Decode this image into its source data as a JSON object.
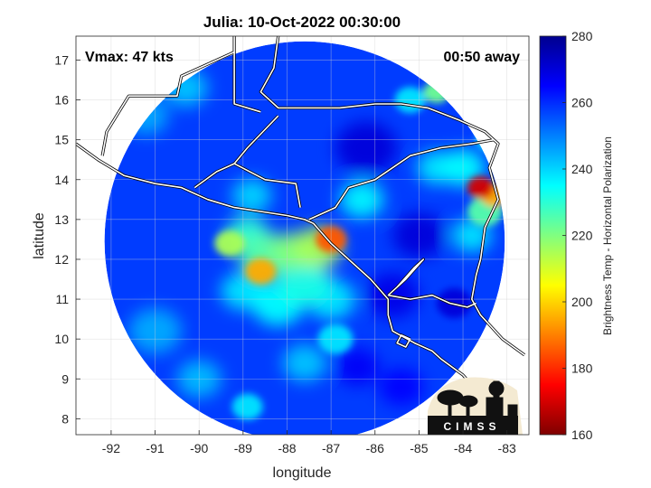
{
  "chart_data": {
    "type": "heatmap",
    "title": "Julia: 10-Oct-2022 00:30:00",
    "xlabel": "longitude",
    "ylabel": "latitude",
    "xlim": [
      -92.8,
      -82.5
    ],
    "ylim": [
      7.6,
      17.6
    ],
    "x_ticks": [
      -92,
      -91,
      -90,
      -89,
      -88,
      -87,
      -86,
      -85,
      -84,
      -83
    ],
    "y_ticks": [
      8,
      9,
      10,
      11,
      12,
      13,
      14,
      15,
      16,
      17
    ],
    "grid": true,
    "annotations": {
      "vmax": "Vmax: 47 kts",
      "away": "00:50 away"
    },
    "colorbar": {
      "label": "Brightness Temp - Horizontal Polarization",
      "min": 160,
      "max": 280,
      "ticks": [
        160,
        180,
        200,
        220,
        240,
        260,
        280
      ],
      "colors": [
        "#7f0000",
        "#ff0000",
        "#ff8000",
        "#ffff00",
        "#80ff80",
        "#00ffff",
        "#0080ff",
        "#0000ff",
        "#00008f"
      ]
    },
    "swath": {
      "center_lon": -87.6,
      "center_lat": 12.45,
      "radius_deg": 4.55,
      "background_value": 258
    },
    "features": [
      {
        "lon": -87.0,
        "lat": 12.5,
        "value": 185,
        "size": 0.35
      },
      {
        "lon": -87.3,
        "lat": 12.3,
        "value": 215,
        "size": 0.55
      },
      {
        "lon": -87.9,
        "lat": 12.2,
        "value": 220,
        "size": 0.5
      },
      {
        "lon": -88.6,
        "lat": 11.7,
        "value": 195,
        "size": 0.35
      },
      {
        "lon": -88.5,
        "lat": 12.1,
        "value": 225,
        "size": 0.6
      },
      {
        "lon": -89.3,
        "lat": 12.4,
        "value": 215,
        "size": 0.35
      },
      {
        "lon": -88.9,
        "lat": 12.6,
        "value": 230,
        "size": 0.5
      },
      {
        "lon": -87.6,
        "lat": 11.4,
        "value": 232,
        "size": 0.6
      },
      {
        "lon": -88.2,
        "lat": 10.9,
        "value": 235,
        "size": 0.6
      },
      {
        "lon": -87.0,
        "lat": 11.0,
        "value": 238,
        "size": 0.55
      },
      {
        "lon": -89.0,
        "lat": 11.2,
        "value": 238,
        "size": 0.5
      },
      {
        "lon": -83.6,
        "lat": 13.8,
        "value": 170,
        "size": 0.3
      },
      {
        "lon": -83.3,
        "lat": 13.6,
        "value": 195,
        "size": 0.3
      },
      {
        "lon": -83.5,
        "lat": 13.2,
        "value": 225,
        "size": 0.4
      },
      {
        "lon": -84.0,
        "lat": 14.3,
        "value": 235,
        "size": 0.5
      },
      {
        "lon": -84.6,
        "lat": 14.3,
        "value": 238,
        "size": 0.45
      },
      {
        "lon": -83.8,
        "lat": 12.6,
        "value": 238,
        "size": 0.45
      },
      {
        "lon": -84.6,
        "lat": 16.2,
        "value": 222,
        "size": 0.3
      },
      {
        "lon": -85.2,
        "lat": 16.0,
        "value": 238,
        "size": 0.35
      },
      {
        "lon": -83.4,
        "lat": 15.0,
        "value": 236,
        "size": 0.3
      },
      {
        "lon": -86.3,
        "lat": 13.5,
        "value": 236,
        "size": 0.5
      },
      {
        "lon": -90.3,
        "lat": 16.3,
        "value": 242,
        "size": 0.5
      },
      {
        "lon": -91.2,
        "lat": 15.6,
        "value": 245,
        "size": 0.5
      },
      {
        "lon": -88.8,
        "lat": 13.6,
        "value": 240,
        "size": 0.45
      },
      {
        "lon": -91.0,
        "lat": 10.2,
        "value": 245,
        "size": 0.6
      },
      {
        "lon": -90.0,
        "lat": 9.0,
        "value": 243,
        "size": 0.5
      },
      {
        "lon": -88.9,
        "lat": 8.3,
        "value": 238,
        "size": 0.35
      },
      {
        "lon": -86.9,
        "lat": 10.0,
        "value": 238,
        "size": 0.4
      },
      {
        "lon": -87.6,
        "lat": 9.4,
        "value": 242,
        "size": 0.5
      },
      {
        "lon": -85.6,
        "lat": 11.1,
        "value": 268,
        "size": 0.6
      },
      {
        "lon": -85.0,
        "lat": 12.6,
        "value": 270,
        "size": 0.6
      },
      {
        "lon": -86.2,
        "lat": 14.8,
        "value": 270,
        "size": 0.7
      },
      {
        "lon": -84.2,
        "lat": 10.9,
        "value": 270,
        "size": 0.4
      },
      {
        "lon": -86.4,
        "lat": 9.3,
        "value": 266,
        "size": 0.5
      },
      {
        "lon": -85.4,
        "lat": 8.8,
        "value": 265,
        "size": 0.5
      }
    ],
    "coastlines": [
      [
        [
          -92.8,
          14.9
        ],
        [
          -92.3,
          14.5
        ],
        [
          -91.7,
          14.1
        ],
        [
          -91.0,
          13.9
        ],
        [
          -90.4,
          13.8
        ],
        [
          -89.8,
          13.5
        ],
        [
          -89.2,
          13.3
        ],
        [
          -88.6,
          13.2
        ],
        [
          -88.0,
          13.1
        ],
        [
          -87.6,
          13.0
        ],
        [
          -87.4,
          12.9
        ],
        [
          -87.0,
          12.4
        ],
        [
          -86.6,
          12.0
        ],
        [
          -86.1,
          11.5
        ],
        [
          -85.7,
          11.0
        ],
        [
          -85.7,
          10.6
        ],
        [
          -85.6,
          10.2
        ],
        [
          -85.1,
          9.9
        ],
        [
          -84.7,
          9.7
        ],
        [
          -84.5,
          9.5
        ],
        [
          -84.0,
          9.1
        ],
        [
          -83.6,
          8.6
        ],
        [
          -83.3,
          8.3
        ],
        [
          -82.9,
          8.1
        ]
      ],
      [
        [
          -88.2,
          17.6
        ],
        [
          -88.3,
          16.8
        ],
        [
          -88.6,
          16.2
        ],
        [
          -88.2,
          15.8
        ],
        [
          -87.6,
          15.8
        ],
        [
          -86.8,
          15.8
        ],
        [
          -86.0,
          15.9
        ],
        [
          -85.4,
          15.9
        ],
        [
          -84.8,
          15.8
        ],
        [
          -84.1,
          15.5
        ],
        [
          -83.5,
          15.2
        ],
        [
          -83.2,
          14.9
        ],
        [
          -83.4,
          14.3
        ],
        [
          -83.2,
          13.5
        ],
        [
          -83.5,
          12.8
        ],
        [
          -83.6,
          12.0
        ],
        [
          -83.7,
          11.6
        ],
        [
          -83.8,
          11.0
        ],
        [
          -83.6,
          10.6
        ],
        [
          -83.1,
          10.0
        ],
        [
          -82.6,
          9.6
        ]
      ],
      [
        [
          -85.7,
          11.1
        ],
        [
          -85.3,
          11.5
        ],
        [
          -84.9,
          12.0
        ],
        [
          -85.1,
          11.8
        ],
        [
          -85.5,
          11.3
        ],
        [
          -85.7,
          11.1
        ]
      ],
      [
        [
          -85.2,
          10.0
        ],
        [
          -85.3,
          9.8
        ],
        [
          -85.5,
          9.9
        ],
        [
          -85.4,
          10.1
        ],
        [
          -85.2,
          10.0
        ]
      ]
    ],
    "borders": [
      [
        [
          -92.2,
          14.6
        ],
        [
          -92.1,
          15.2
        ],
        [
          -91.6,
          16.1
        ],
        [
          -90.5,
          16.1
        ],
        [
          -90.4,
          16.6
        ],
        [
          -89.2,
          17.2
        ],
        [
          -89.2,
          17.6
        ]
      ],
      [
        [
          -89.2,
          17.2
        ],
        [
          -89.2,
          15.9
        ],
        [
          -88.6,
          15.7
        ]
      ],
      [
        [
          -90.1,
          13.8
        ],
        [
          -89.6,
          14.2
        ],
        [
          -89.2,
          14.4
        ],
        [
          -88.5,
          14.0
        ],
        [
          -87.8,
          13.9
        ],
        [
          -87.7,
          13.3
        ]
      ],
      [
        [
          -89.2,
          14.4
        ],
        [
          -88.9,
          14.8
        ],
        [
          -88.2,
          15.6
        ]
      ],
      [
        [
          -87.5,
          13.0
        ],
        [
          -86.9,
          13.3
        ],
        [
          -86.6,
          13.8
        ],
        [
          -86.0,
          14.0
        ],
        [
          -85.2,
          14.6
        ],
        [
          -84.5,
          14.8
        ],
        [
          -83.8,
          14.9
        ],
        [
          -83.3,
          15.0
        ]
      ],
      [
        [
          -85.7,
          11.1
        ],
        [
          -85.2,
          11.0
        ],
        [
          -84.7,
          11.1
        ],
        [
          -84.3,
          10.9
        ],
        [
          -83.9,
          10.8
        ],
        [
          -83.7,
          10.9
        ]
      ]
    ],
    "logo": {
      "text": "CIMSS"
    }
  }
}
